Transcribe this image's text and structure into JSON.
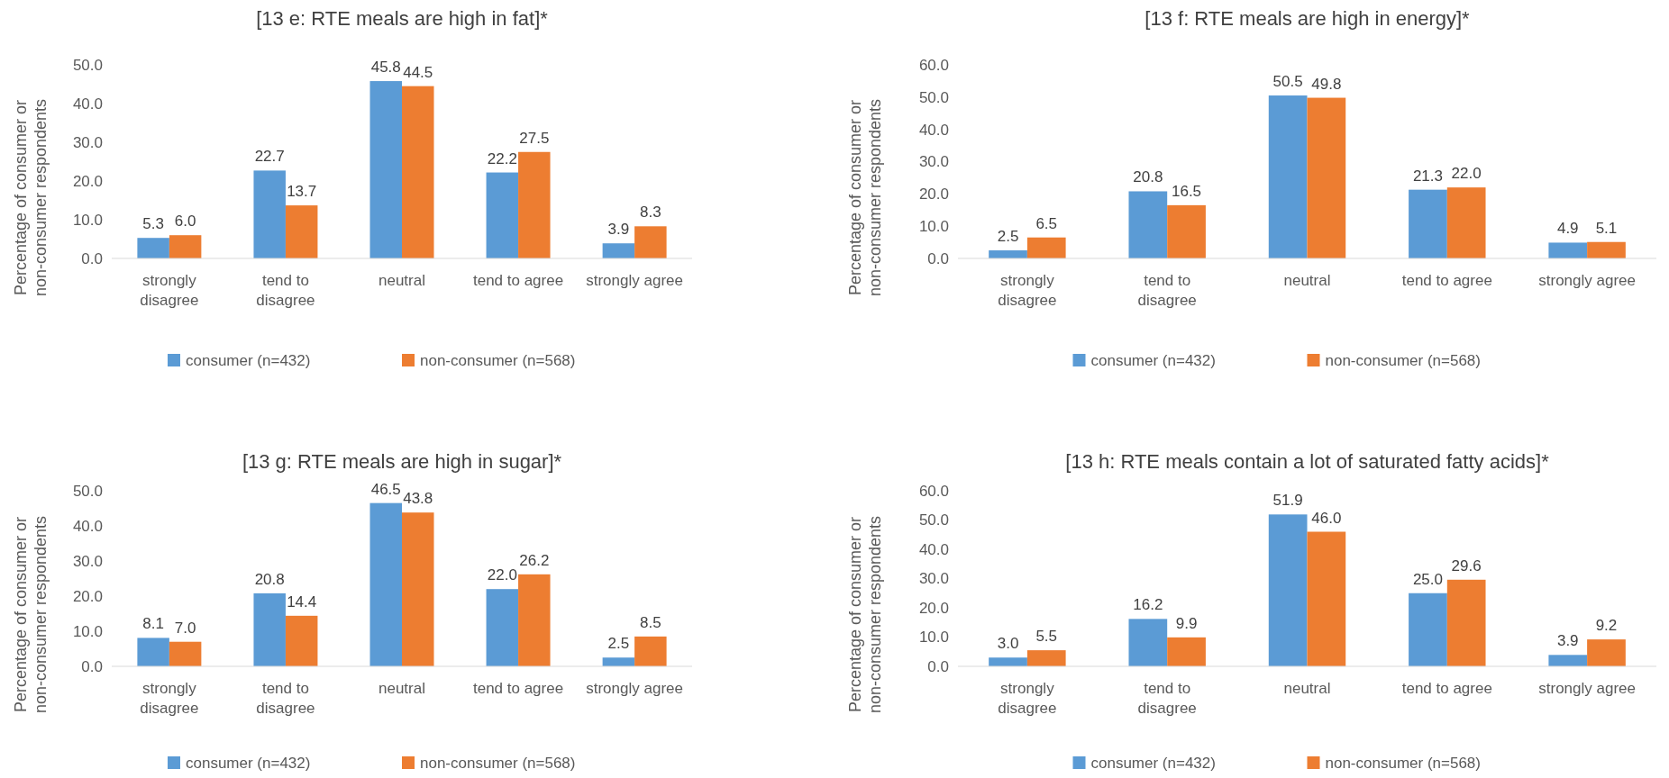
{
  "chart_data": [
    {
      "type": "bar",
      "title": "[13 e: RTE meals are high in fat]*",
      "ylabel": "Percentage of consumer or non-consumer respondents",
      "categories": [
        "strongly disagree",
        "tend to disagree",
        "neutral",
        "tend to agree",
        "strongly agree"
      ],
      "series": [
        {
          "name": "consumer (n=432)",
          "color": "#5b9bd5",
          "values": [
            5.3,
            22.7,
            45.8,
            22.2,
            3.9
          ],
          "value_labels": [
            "5.3",
            "22.7",
            "45.8",
            "22.2",
            "3.9"
          ]
        },
        {
          "name": "non-consumer (n=568)",
          "color": "#ed7d31",
          "values": [
            6.0,
            13.7,
            44.5,
            27.5,
            8.3
          ],
          "value_labels": [
            "6.0",
            "13.7",
            "44.5",
            "27.5",
            "8.3"
          ]
        }
      ],
      "ylim": [
        0,
        50
      ],
      "yticks": [
        {
          "value": 0,
          "label": "0.0"
        },
        {
          "value": 10,
          "label": "10.0"
        },
        {
          "value": 20,
          "label": "20.0"
        },
        {
          "value": 30,
          "label": "30.0"
        },
        {
          "value": 40,
          "label": "40.0"
        },
        {
          "value": 50,
          "label": "50.0"
        }
      ],
      "legend": "bottom"
    },
    {
      "type": "bar",
      "title": "[13 f: RTE meals are high in energy]*",
      "ylabel": "Percentage of consumer or non-consumer respondents",
      "categories": [
        "strongly disagree",
        "tend to disagree",
        "neutral",
        "tend to agree",
        "strongly agree"
      ],
      "series": [
        {
          "name": "consumer (n=432)",
          "color": "#5b9bd5",
          "values": [
            2.5,
            20.8,
            50.5,
            21.3,
            4.9
          ],
          "value_labels": [
            "2.5",
            "20.8",
            "50.5",
            "21.3",
            "4.9"
          ]
        },
        {
          "name": "non-consumer (n=568)",
          "color": "#ed7d31",
          "values": [
            6.5,
            16.5,
            49.8,
            22.0,
            5.1
          ],
          "value_labels": [
            "6.5",
            "16.5",
            "49.8",
            "22.0",
            "5.1"
          ]
        }
      ],
      "ylim": [
        0,
        60
      ],
      "yticks": [
        {
          "value": 0,
          "label": "0.0"
        },
        {
          "value": 10,
          "label": "10.0"
        },
        {
          "value": 20,
          "label": "20.0"
        },
        {
          "value": 30,
          "label": "30.0"
        },
        {
          "value": 40,
          "label": "40.0"
        },
        {
          "value": 50,
          "label": "50.0"
        },
        {
          "value": 60,
          "label": "60.0"
        }
      ],
      "legend": "bottom"
    },
    {
      "type": "bar",
      "title": "[13 g: RTE meals are high in sugar]*",
      "ylabel": "Percentage of consumer or non-consumer respondents",
      "categories": [
        "strongly disagree",
        "tend to disagree",
        "neutral",
        "tend to agree",
        "strongly agree"
      ],
      "series": [
        {
          "name": "consumer (n=432)",
          "color": "#5b9bd5",
          "values": [
            8.1,
            20.8,
            46.5,
            22.0,
            2.5
          ],
          "value_labels": [
            "8.1",
            "20.8",
            "46.5",
            "22.0",
            "2.5"
          ]
        },
        {
          "name": "non-consumer (n=568)",
          "color": "#ed7d31",
          "values": [
            7.0,
            14.4,
            43.8,
            26.2,
            8.5
          ],
          "value_labels": [
            "7.0",
            "14.4",
            "43.8",
            "26.2",
            "8.5"
          ]
        }
      ],
      "ylim": [
        0,
        50
      ],
      "yticks": [
        {
          "value": 0,
          "label": "0.0"
        },
        {
          "value": 10,
          "label": "10.0"
        },
        {
          "value": 20,
          "label": "20.0"
        },
        {
          "value": 30,
          "label": "30.0"
        },
        {
          "value": 40,
          "label": "40.0"
        },
        {
          "value": 50,
          "label": "50.0"
        }
      ],
      "legend": "bottom"
    },
    {
      "type": "bar",
      "title": "[13 h: RTE meals contain a lot of saturated fatty acids]*",
      "ylabel": "Percentage of consumer or non-consumer respondents",
      "categories": [
        "strongly disagree",
        "tend to disagree",
        "neutral",
        "tend to agree",
        "strongly agree"
      ],
      "series": [
        {
          "name": "consumer (n=432)",
          "color": "#5b9bd5",
          "values": [
            3.0,
            16.2,
            51.9,
            25.0,
            3.9
          ],
          "value_labels": [
            "3.0",
            "16.2",
            "51.9",
            "25.0",
            "3.9"
          ]
        },
        {
          "name": "non-consumer (n=568)",
          "color": "#ed7d31",
          "values": [
            5.5,
            9.9,
            46.0,
            29.6,
            9.2
          ],
          "value_labels": [
            "5.5",
            "9.9",
            "46.0",
            "29.6",
            "9.2"
          ]
        }
      ],
      "ylim": [
        0,
        60
      ],
      "yticks": [
        {
          "value": 0,
          "label": "0.0"
        },
        {
          "value": 10,
          "label": "10.0"
        },
        {
          "value": 20,
          "label": "20.0"
        },
        {
          "value": 30,
          "label": "30.0"
        },
        {
          "value": 40,
          "label": "40.0"
        },
        {
          "value": 50,
          "label": "50.0"
        },
        {
          "value": 60,
          "label": "60.0"
        }
      ],
      "legend": "bottom"
    }
  ]
}
